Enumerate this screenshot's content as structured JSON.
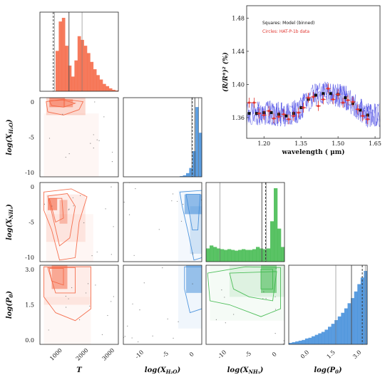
{
  "chart_data": [
    {
      "type": "corner",
      "parameters": [
        {
          "label": "T",
          "ticks": [
            "1000",
            "2000",
            "3000"
          ],
          "range": [
            300,
            3000
          ],
          "color": "#f4633f"
        },
        {
          "label": "log(X",
          "sub": "H₂O",
          "ticks": [
            "-10",
            "-5",
            "0"
          ],
          "range": [
            -12.5,
            0
          ],
          "color": "#3d8bd9"
        },
        {
          "label": "log(X",
          "sub": "NH₃",
          "ticks": [
            "-10",
            "-5",
            "0"
          ],
          "range": [
            -12.5,
            0
          ],
          "color": "#3db84a"
        },
        {
          "label": "log(P",
          "sub": "0",
          "ticks": [
            "0.0",
            "1.5",
            "3.0"
          ],
          "range": [
            -1,
            3
          ],
          "color": "#3d8bd9"
        }
      ],
      "ylabels": [
        {
          "label": "log(X",
          "sub": "H₂O",
          "ticks": [
            "0",
            "-5",
            "-10"
          ]
        },
        {
          "label": "log(X",
          "sub": "NH₃",
          "ticks": [
            "0",
            "-5",
            "-10"
          ]
        },
        {
          "label": "log(P",
          "sub": "0",
          "ticks": [
            "3.0",
            "1.5",
            "0.0"
          ]
        }
      ],
      "hist_T": [
        0,
        0,
        0,
        0,
        0,
        0.55,
        0.95,
        1.0,
        0.62,
        0.35,
        0.2,
        0.42,
        0.75,
        0.7,
        0.62,
        0.52,
        0.4,
        0.3,
        0.22,
        0.16,
        0.1,
        0.07,
        0.04,
        0.02,
        0.01
      ],
      "hist_H2O": [
        0,
        0,
        0,
        0,
        0,
        0,
        0,
        0,
        0,
        0,
        0,
        0,
        0,
        0,
        0,
        0,
        0,
        0,
        0.01,
        0.02,
        0.05,
        0.12,
        0.35,
        0.95,
        0.6
      ],
      "hist_NH3": [
        0.18,
        0.22,
        0.2,
        0.18,
        0.17,
        0.16,
        0.17,
        0.16,
        0.15,
        0.16,
        0.17,
        0.16,
        0.16,
        0.17,
        0.2,
        0.18,
        0.17,
        0.18,
        0.55,
        1.0,
        0.45,
        0.2
      ],
      "hist_P0": [
        0.02,
        0.03,
        0.04,
        0.05,
        0.06,
        0.08,
        0.09,
        0.11,
        0.13,
        0.15,
        0.17,
        0.2,
        0.24,
        0.28,
        0.33,
        0.38,
        0.43,
        0.49,
        0.56,
        0.63,
        0.72,
        0.82,
        0.91,
        1.0
      ],
      "quantiles": {
        "T": [
          800,
          1300,
          1750
        ],
        "H2O": [
          -1.6,
          -1.1,
          -0.5
        ],
        "NH3": [
          -10.3,
          -3.6,
          -2.9
        ],
        "P0": [
          1.4,
          2.2,
          2.9
        ]
      },
      "median_dashed": {
        "T": 760,
        "H2O": -1.5,
        "NH3": -3.0,
        "P0": 2.75
      }
    },
    {
      "type": "line",
      "xlabel": "wavelength ( μm)",
      "ylabel": "(R/R*)² (%)",
      "xlim": [
        1.13,
        1.67
      ],
      "ylim": [
        1.335,
        1.495
      ],
      "xticks": [
        "1.20",
        "1.35",
        "1.50",
        "1.65"
      ],
      "yticks": [
        "1.36",
        "1.40",
        "1.44",
        "1.48"
      ],
      "legend": [
        "Squares: Model (binned)",
        "Circles: HAT-P-1b data"
      ],
      "legend_colors": [
        "#111111",
        "#e0352f"
      ],
      "model_binned": {
        "x": [
          1.14,
          1.17,
          1.2,
          1.23,
          1.26,
          1.29,
          1.32,
          1.35,
          1.38,
          1.41,
          1.44,
          1.47,
          1.5,
          1.53,
          1.56,
          1.59,
          1.62
        ],
        "y": [
          1.365,
          1.365,
          1.366,
          1.366,
          1.364,
          1.362,
          1.365,
          1.372,
          1.382,
          1.387,
          1.389,
          1.389,
          1.388,
          1.384,
          1.377,
          1.369,
          1.363
        ]
      },
      "data": {
        "x": [
          1.14,
          1.16,
          1.18,
          1.2,
          1.22,
          1.24,
          1.26,
          1.28,
          1.3,
          1.32,
          1.34,
          1.36,
          1.38,
          1.4,
          1.42,
          1.44,
          1.46,
          1.48,
          1.5,
          1.52,
          1.54,
          1.56,
          1.58,
          1.6,
          1.62
        ],
        "y": [
          1.378,
          1.378,
          1.365,
          1.363,
          1.368,
          1.359,
          1.361,
          1.364,
          1.358,
          1.362,
          1.366,
          1.372,
          1.384,
          1.385,
          1.374,
          1.382,
          1.395,
          1.382,
          1.388,
          1.378,
          1.381,
          1.379,
          1.37,
          1.362,
          1.358
        ],
        "err": [
          0.006,
          0.006,
          0.006,
          0.006,
          0.006,
          0.006,
          0.006,
          0.006,
          0.006,
          0.006,
          0.006,
          0.006,
          0.006,
          0.006,
          0.006,
          0.006,
          0.006,
          0.006,
          0.006,
          0.006,
          0.006,
          0.006,
          0.006,
          0.006,
          0.006
        ]
      },
      "colors": {
        "spectrum": "#2a2ae0",
        "model": "#111111",
        "data": "#e0352f"
      }
    }
  ]
}
